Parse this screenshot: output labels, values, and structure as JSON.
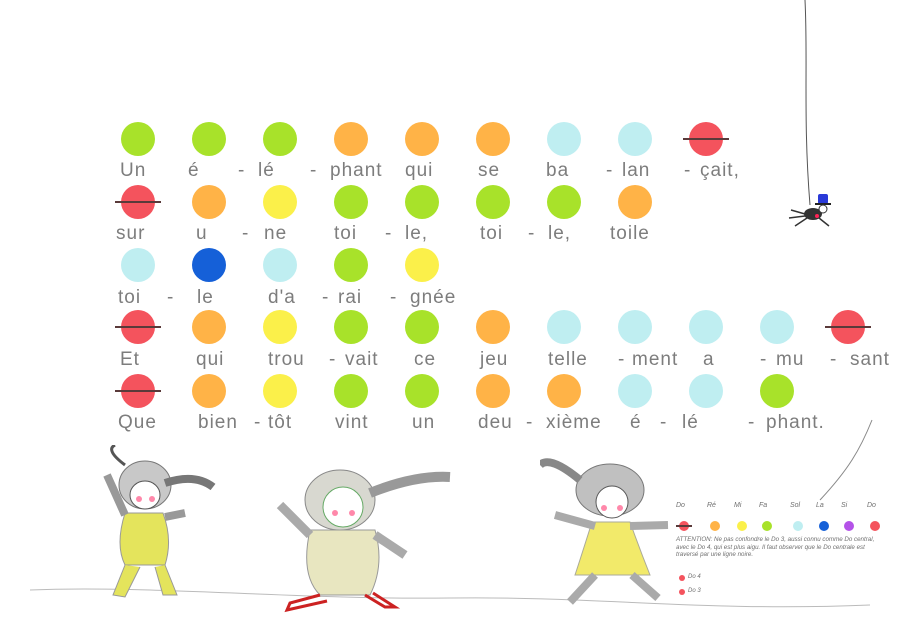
{
  "colors": {
    "do": "#f4535d",
    "re": "#ffb347",
    "mi": "#fbf04a",
    "fa": "#a8e22a",
    "sol": "#bfeef1",
    "la": "#1560d8",
    "si": "#b452e8",
    "do_high": "#f4535d"
  },
  "song": {
    "lines": [
      {
        "notes": [
          "fa",
          "fa",
          "fa",
          "re",
          "re",
          "re",
          "sol",
          "sol",
          "do_struck"
        ],
        "syllables": [
          "Un",
          "é",
          "-",
          "lé",
          "-",
          "phant",
          "qui",
          "se",
          "ba",
          "-",
          "lan",
          "-",
          "çait,"
        ]
      },
      {
        "notes": [
          "do_struck",
          "re",
          "mi",
          "fa",
          "fa",
          "fa",
          "fa",
          "re"
        ],
        "syllables": [
          "sur",
          "u",
          "-",
          "ne",
          "toi",
          "-",
          "le,",
          "toi",
          "-",
          "le,",
          "toile"
        ]
      },
      {
        "notes": [
          "sol",
          "la",
          "sol",
          "fa",
          "mi"
        ],
        "syllables": [
          "toi",
          "-",
          "le",
          "d'a",
          "-",
          "rai",
          "-",
          "gnée"
        ]
      },
      {
        "notes": [
          "do_struck",
          "re",
          "mi",
          "fa",
          "fa",
          "re",
          "sol",
          "sol",
          "sol",
          "sol",
          "do_struck"
        ],
        "syllables": [
          "Et",
          "qui",
          "trou",
          "-",
          "vait",
          "ce",
          "jeu",
          "telle",
          "-",
          "ment",
          "a",
          "-",
          "mu",
          "-",
          "sant"
        ]
      },
      {
        "notes": [
          "do_struck",
          "re",
          "mi",
          "fa",
          "fa",
          "re",
          "re",
          "sol",
          "sol",
          "fa"
        ],
        "syllables": [
          "Que",
          "bien",
          "-",
          "tôt",
          "vint",
          "un",
          "deu",
          "-",
          "xième",
          "é",
          "-",
          "lé",
          "-",
          "phant."
        ]
      }
    ]
  },
  "legend": {
    "note_names": [
      "Do",
      "Ré",
      "Mi",
      "Fa",
      "Sol",
      "La",
      "Si",
      "Do"
    ],
    "note_keys": [
      "do",
      "re",
      "mi",
      "fa",
      "sol",
      "la",
      "si",
      "do_high"
    ],
    "attention": "ATTENTION: Ne pas confondre le Do 3, aussi connu comme Do central, avec le Do 4, qui est plus aigu. Il faut observer que le Do centrale est traversé par une ligne noire.",
    "do4_label": "Do 4",
    "do3_label": "Do 3"
  },
  "icons": [
    "elephant-costume-child-1-icon",
    "elephant-costume-child-2-icon",
    "elephant-costume-child-3-icon",
    "spider-icon",
    "spider-thread-icon"
  ]
}
